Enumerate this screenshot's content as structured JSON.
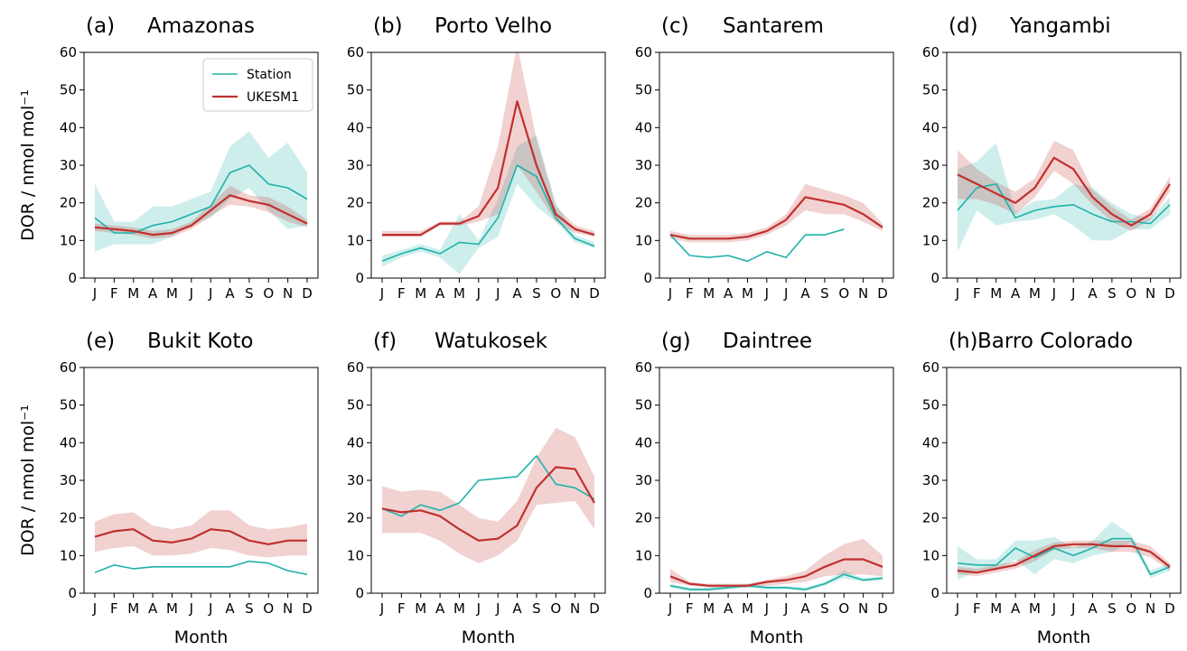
{
  "figure": {
    "ylabel": "DOR / nmol mol⁻¹",
    "xlabel": "Month",
    "legend": {
      "entries": [
        "Station",
        "UKESM1"
      ],
      "placement": "top-right of panel (a)"
    }
  },
  "colors": {
    "station": "#20b2aa",
    "ukesm": "#c0302e",
    "station_band": "#20b2aa",
    "ukesm_band": "#c0302e"
  },
  "chart_data": [
    {
      "type": "line",
      "panel": "(a)",
      "title": "Amazonas",
      "xlabel": "",
      "ylabel": "DOR / nmol mol⁻¹",
      "categories": [
        "J",
        "F",
        "M",
        "A",
        "M",
        "J",
        "J",
        "A",
        "S",
        "O",
        "N",
        "D"
      ],
      "ylim": [
        0,
        60
      ],
      "yticks": [
        0,
        10,
        20,
        30,
        40,
        50,
        60
      ],
      "grid": false,
      "series": [
        {
          "name": "Station",
          "values": [
            16,
            12,
            12,
            14,
            15,
            17,
            19,
            28,
            30,
            25,
            24,
            21
          ],
          "lower": [
            7,
            9,
            9,
            9,
            11,
            14,
            16,
            21,
            24,
            18,
            13,
            14
          ],
          "upper": [
            25,
            15,
            15,
            19,
            19,
            21,
            23,
            35,
            39,
            32,
            36,
            28
          ]
        },
        {
          "name": "UKESM1",
          "values": [
            13.5,
            13,
            12.5,
            11.5,
            12,
            14,
            18,
            22,
            20.5,
            19.5,
            17,
            14.5
          ],
          "lower": [
            12.5,
            12,
            11.5,
            10.5,
            11,
            13,
            16.5,
            19.5,
            19,
            17.5,
            15,
            13.5
          ],
          "upper": [
            14.5,
            14,
            13.5,
            12.5,
            13,
            15,
            19.5,
            24.5,
            22,
            21.5,
            19,
            15.5
          ]
        }
      ]
    },
    {
      "type": "line",
      "panel": "(b)",
      "title": "Porto Velho",
      "xlabel": "",
      "ylabel": "",
      "categories": [
        "J",
        "F",
        "M",
        "A",
        "M",
        "J",
        "J",
        "A",
        "S",
        "O",
        "N",
        "D"
      ],
      "ylim": [
        0,
        60
      ],
      "yticks": [
        0,
        10,
        20,
        30,
        40,
        50,
        60
      ],
      "grid": false,
      "series": [
        {
          "name": "Station",
          "values": [
            4.5,
            6.5,
            8,
            6.5,
            9.5,
            9,
            16,
            30,
            27,
            16,
            10.5,
            8.5
          ],
          "lower": [
            3,
            5.5,
            7,
            5.5,
            1,
            8,
            11,
            25,
            19,
            15,
            9.5,
            8
          ],
          "upper": [
            6,
            7.5,
            9,
            7.5,
            17,
            10,
            21,
            35,
            38,
            20,
            11.5,
            9.5
          ]
        },
        {
          "name": "UKESM1",
          "values": [
            11.5,
            11.5,
            11.5,
            14.5,
            14.5,
            16.5,
            24,
            47,
            30,
            17,
            13,
            11.5
          ],
          "lower": [
            11,
            11,
            11,
            14,
            14,
            15,
            17,
            30,
            23,
            15,
            12,
            11
          ],
          "upper": [
            12.5,
            12.5,
            12.5,
            15,
            15,
            19,
            35,
            62,
            37,
            19,
            14,
            12.5
          ]
        }
      ]
    },
    {
      "type": "line",
      "panel": "(c)",
      "title": "Santarem",
      "xlabel": "",
      "ylabel": "",
      "categories": [
        "J",
        "F",
        "M",
        "A",
        "M",
        "J",
        "J",
        "A",
        "S",
        "O",
        "N",
        "D"
      ],
      "ylim": [
        0,
        60
      ],
      "yticks": [
        0,
        10,
        20,
        30,
        40,
        50,
        60
      ],
      "grid": false,
      "series": [
        {
          "name": "Station",
          "values": [
            11.5,
            6,
            5.5,
            6,
            4.5,
            7,
            5.5,
            11.5,
            11.5,
            13,
            null,
            null
          ]
        },
        {
          "name": "UKESM1",
          "values": [
            11.5,
            10.5,
            10.5,
            10.5,
            11,
            12.5,
            15.5,
            21.5,
            20.5,
            19.5,
            17,
            13.5
          ],
          "lower": [
            10.5,
            9.5,
            9.5,
            9.5,
            10,
            11.5,
            14,
            18,
            17,
            17,
            15,
            12.5
          ],
          "upper": [
            12.5,
            11.5,
            11.5,
            11.5,
            12,
            13.5,
            17,
            25,
            23.5,
            22,
            20,
            14.5
          ]
        }
      ]
    },
    {
      "type": "line",
      "panel": "(d)",
      "title": "Yangambi",
      "xlabel": "",
      "ylabel": "",
      "categories": [
        "J",
        "F",
        "M",
        "A",
        "M",
        "J",
        "J",
        "A",
        "S",
        "O",
        "N",
        "D"
      ],
      "ylim": [
        0,
        60
      ],
      "yticks": [
        0,
        10,
        20,
        30,
        40,
        50,
        60
      ],
      "grid": false,
      "series": [
        {
          "name": "Station",
          "values": [
            18,
            24,
            25,
            16,
            18,
            19,
            19.5,
            17,
            15,
            15,
            14.5,
            19.5
          ],
          "lower": [
            7,
            18,
            14,
            15,
            15.5,
            17,
            14,
            10,
            10,
            13,
            13,
            17
          ],
          "upper": [
            29,
            31,
            36,
            17.5,
            20.5,
            21,
            25,
            24,
            20,
            17,
            16,
            21.5
          ]
        },
        {
          "name": "UKESM1",
          "values": [
            27.5,
            25,
            22.5,
            20,
            24,
            32,
            29,
            21.5,
            17,
            14,
            17,
            25
          ],
          "lower": [
            21,
            21,
            19.5,
            17,
            21.5,
            28.5,
            25,
            19.5,
            15,
            12.5,
            15.5,
            23
          ],
          "upper": [
            34,
            29,
            25.5,
            23,
            26.5,
            36.5,
            34,
            23.5,
            19,
            15.5,
            18.5,
            27
          ]
        }
      ]
    },
    {
      "type": "line",
      "panel": "(e)",
      "title": "Bukit Koto",
      "xlabel": "Month",
      "ylabel": "DOR / nmol mol⁻¹",
      "categories": [
        "J",
        "F",
        "M",
        "A",
        "M",
        "J",
        "J",
        "A",
        "S",
        "O",
        "N",
        "D"
      ],
      "ylim": [
        0,
        60
      ],
      "yticks": [
        0,
        10,
        20,
        30,
        40,
        50,
        60
      ],
      "grid": false,
      "series": [
        {
          "name": "Station",
          "values": [
            5.5,
            7.5,
            6.5,
            7,
            7,
            7,
            7,
            7,
            8.5,
            8,
            6,
            5
          ]
        },
        {
          "name": "UKESM1",
          "values": [
            15,
            16.5,
            17,
            14,
            13.5,
            14.5,
            17,
            16.5,
            14,
            13,
            14,
            14
          ],
          "lower": [
            11,
            12,
            12.5,
            10,
            10,
            10.5,
            12,
            11.5,
            10,
            9.5,
            10,
            10
          ],
          "upper": [
            19,
            21,
            21.5,
            18,
            17,
            18,
            22,
            22,
            18,
            17,
            17.5,
            18.5
          ]
        }
      ]
    },
    {
      "type": "line",
      "panel": "(f)",
      "title": "Watukosek",
      "xlabel": "Month",
      "ylabel": "",
      "categories": [
        "J",
        "F",
        "M",
        "A",
        "M",
        "J",
        "J",
        "A",
        "S",
        "O",
        "N",
        "D"
      ],
      "ylim": [
        0,
        60
      ],
      "yticks": [
        0,
        10,
        20,
        30,
        40,
        50,
        60
      ],
      "grid": false,
      "series": [
        {
          "name": "Station",
          "values": [
            22.5,
            20.5,
            23.5,
            22,
            24,
            30,
            30.5,
            31,
            36.5,
            29,
            28,
            25
          ]
        },
        {
          "name": "UKESM1",
          "values": [
            22.5,
            21.5,
            22,
            20.5,
            17,
            14,
            14.5,
            18,
            28,
            33.5,
            33,
            24
          ],
          "lower": [
            16,
            16,
            16,
            14,
            10.5,
            8,
            10,
            14,
            23.5,
            24,
            24.5,
            17
          ],
          "upper": [
            28.5,
            27,
            27.5,
            27,
            23.5,
            20,
            19,
            24.5,
            36,
            44,
            41.5,
            31
          ]
        }
      ]
    },
    {
      "type": "line",
      "panel": "(g)",
      "title": "Daintree",
      "xlabel": "Month",
      "ylabel": "",
      "categories": [
        "J",
        "F",
        "M",
        "A",
        "M",
        "J",
        "J",
        "A",
        "S",
        "O",
        "N",
        "D"
      ],
      "ylim": [
        0,
        60
      ],
      "yticks": [
        0,
        10,
        20,
        30,
        40,
        50,
        60
      ],
      "grid": false,
      "series": [
        {
          "name": "Station",
          "values": [
            2,
            1,
            1,
            1.5,
            2,
            1.5,
            1.5,
            1,
            2.5,
            5,
            3.5,
            4
          ],
          "lower": [
            1.5,
            0.5,
            0.5,
            1,
            1.5,
            1,
            1,
            0.5,
            2,
            4,
            3,
            3.5
          ],
          "upper": [
            2.5,
            1.5,
            1.5,
            2,
            2.5,
            2,
            2,
            1.5,
            3,
            6,
            4,
            4.5
          ]
        },
        {
          "name": "UKESM1",
          "values": [
            4.5,
            2.5,
            2,
            2,
            2,
            3,
            3.5,
            4.5,
            7,
            9,
            9,
            7
          ],
          "lower": [
            3,
            2,
            1.5,
            1.5,
            1.5,
            2,
            2.5,
            3,
            4.5,
            5,
            5,
            4.5
          ],
          "upper": [
            6.5,
            3,
            2.5,
            2.5,
            2.5,
            3.5,
            4.5,
            6,
            10,
            13,
            14.5,
            10
          ]
        }
      ]
    },
    {
      "type": "line",
      "panel": "(h)",
      "title": "Barro Colorado",
      "xlabel": "Month",
      "ylabel": "",
      "categories": [
        "J",
        "F",
        "M",
        "A",
        "M",
        "J",
        "J",
        "A",
        "S",
        "O",
        "N",
        "D"
      ],
      "ylim": [
        0,
        60
      ],
      "yticks": [
        0,
        10,
        20,
        30,
        40,
        50,
        60
      ],
      "grid": false,
      "series": [
        {
          "name": "Station",
          "values": [
            8,
            7.5,
            7.5,
            12,
            9.5,
            12,
            10,
            12,
            14.5,
            14.5,
            5,
            7
          ],
          "lower": [
            3.5,
            6,
            6,
            9,
            5,
            9,
            8,
            10,
            11,
            13.5,
            4,
            6
          ],
          "upper": [
            12.5,
            9,
            9,
            14,
            14,
            15,
            12,
            14,
            19,
            15.5,
            6,
            8
          ]
        },
        {
          "name": "UKESM1",
          "values": [
            6,
            5.5,
            6.5,
            7.5,
            10,
            12.5,
            13,
            13,
            12.5,
            12.5,
            11,
            7
          ],
          "lower": [
            5,
            4.5,
            5.5,
            6.5,
            8.5,
            11.5,
            12,
            12,
            11,
            11,
            9.5,
            6
          ],
          "upper": [
            7,
            6.5,
            7.5,
            8.5,
            11.5,
            13.5,
            14,
            14,
            14,
            14,
            12.5,
            8
          ]
        }
      ]
    }
  ]
}
